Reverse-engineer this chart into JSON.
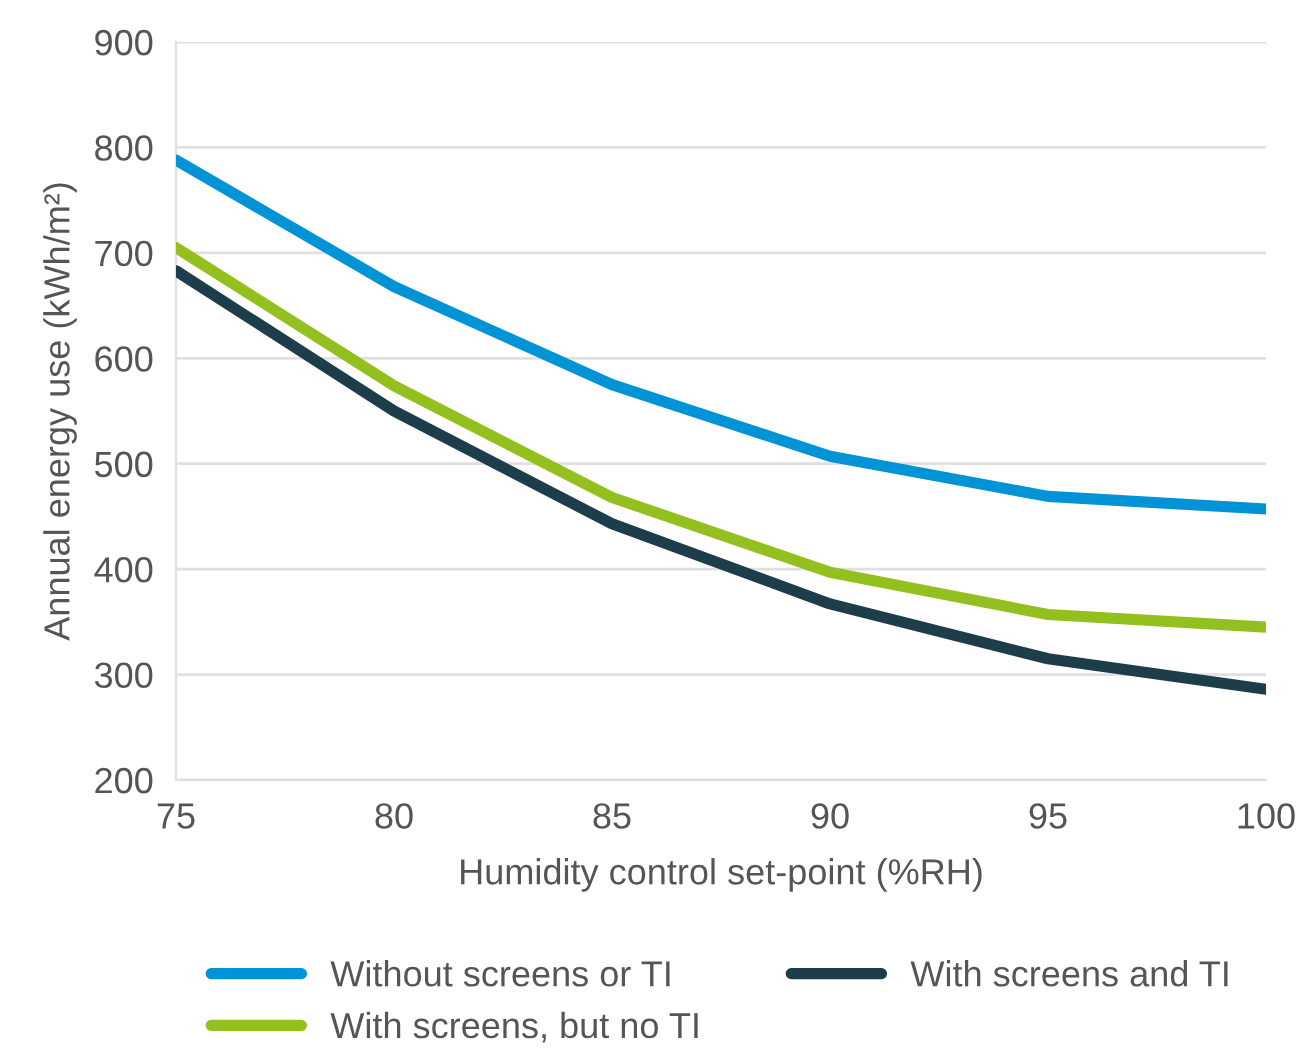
{
  "chart_data": {
    "type": "line",
    "xlabel": "Humidity control set-point (%RH)",
    "ylabel": "Annual energy use (kWh/m²)",
    "x": [
      75,
      80,
      85,
      90,
      95,
      100
    ],
    "series": [
      {
        "name": "Without screens or TI",
        "color": "#0093d5",
        "values": [
          788,
          668,
          575,
          507,
          469,
          457
        ]
      },
      {
        "name": "With screens, but no TI",
        "color": "#93c01f",
        "values": [
          705,
          574,
          468,
          397,
          357,
          345
        ]
      },
      {
        "name": "With screens and TI",
        "color": "#1d3d4a",
        "values": [
          683,
          550,
          443,
          367,
          315,
          286
        ]
      }
    ],
    "xlim": [
      75,
      100
    ],
    "xticks": [
      75,
      80,
      85,
      90,
      95,
      100
    ],
    "ylim": [
      200,
      900
    ],
    "yticks": [
      200,
      300,
      400,
      500,
      600,
      700,
      800,
      900
    ],
    "grid": "y",
    "legend": "bottom",
    "marker": "none",
    "line_style": "solid"
  }
}
